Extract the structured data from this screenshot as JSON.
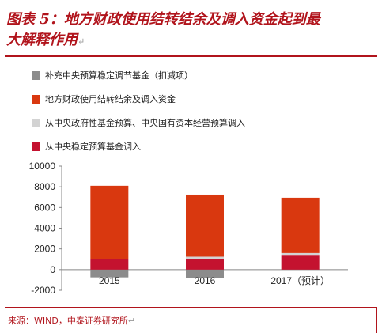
{
  "figure": {
    "title_line1": "图表 5：地方财政使用结转结余及调入资金起到最",
    "title_line2": "大解释作用",
    "return_mark": "↵",
    "source": "来源：WIND，中泰证券研究所"
  },
  "colors": {
    "accent": "#b1141c",
    "s1": "#8c8c8c",
    "s2": "#d9380f",
    "s3": "#d3d3d3",
    "s4": "#c4122f"
  },
  "chart_data": {
    "type": "bar",
    "stacked": true,
    "categories": [
      "2015",
      "2016",
      "2017（预计）"
    ],
    "series": [
      {
        "name": "补充中央预算稳定调节基金（扣减项）",
        "values": [
          -750,
          -800,
          0
        ]
      },
      {
        "name": "地方财政使用结转结余及调入资金",
        "values": [
          7100,
          6000,
          5350
        ]
      },
      {
        "name": "从中央政府性基金预算、中央国有资本经营预算调入",
        "values": [
          0,
          250,
          250
        ]
      },
      {
        "name": "从中央稳定预算基金调入",
        "values": [
          1000,
          1000,
          1350
        ]
      }
    ],
    "stack_order": [
      3,
      2,
      1
    ],
    "ylim": [
      -2000,
      10000
    ],
    "yticks": [
      -2000,
      0,
      2000,
      4000,
      6000,
      8000,
      10000
    ],
    "ytick_labels": [
      "-2000",
      "0",
      "2000",
      "4000",
      "6000",
      "8000",
      "10000"
    ],
    "legend_position": "top-left",
    "grid": false
  }
}
